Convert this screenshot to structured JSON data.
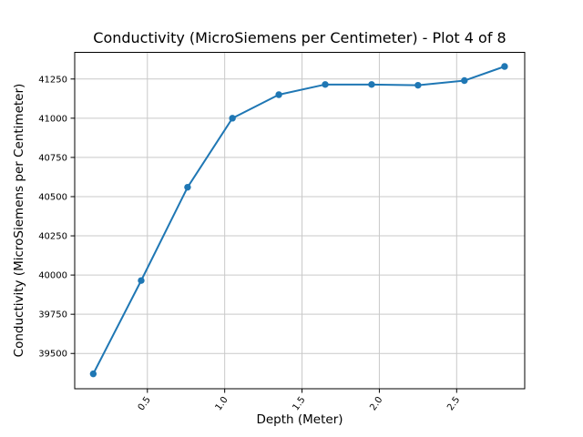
{
  "figure": {
    "background": "#ffffff"
  },
  "chart_data": {
    "type": "line",
    "title": "Conductivity (MicroSiemens per Centimeter) - Plot 4 of 8",
    "xlabel": "Depth (Meter)",
    "ylabel": "Conductivity (MicroSiemens per Centimeter)",
    "x": [
      0.15,
      0.46,
      0.76,
      1.05,
      1.35,
      1.65,
      1.95,
      2.25,
      2.55,
      2.81
    ],
    "y": [
      39370,
      39965,
      40560,
      41000,
      41150,
      41215,
      41215,
      41210,
      41240,
      41330
    ],
    "xlim": [
      0.03,
      2.94
    ],
    "ylim": [
      39275,
      41420
    ],
    "xticks": [
      0.5,
      1.0,
      1.5,
      2.0,
      2.5
    ],
    "xtick_labels": [
      "0.5",
      "1.0",
      "1.5",
      "2.0",
      "2.5"
    ],
    "yticks": [
      39500,
      39750,
      40000,
      40250,
      40500,
      40750,
      41000,
      41250
    ],
    "ytick_labels": [
      "39500",
      "39750",
      "40000",
      "40250",
      "40500",
      "40750",
      "41000",
      "41250"
    ],
    "xtick_rotation_deg": 55,
    "grid": true,
    "legend": false,
    "line_color": "#1f77b4",
    "marker": "o",
    "marker_color": "#1f77b4",
    "grid_color": "#c9c9c9",
    "spine_color": "#000000",
    "text_color": "#000000"
  }
}
